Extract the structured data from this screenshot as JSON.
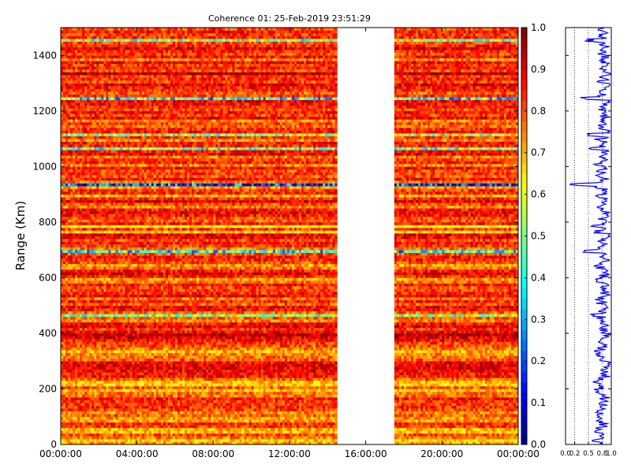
{
  "chart_data": [
    {
      "type": "heatmap",
      "title": "Coherence 01: 25-Feb-2019 23:51:29",
      "xlabel": "",
      "ylabel": "Range (Km)",
      "x_ticks": [
        "00:00:00",
        "04:00:00",
        "08:00:00",
        "12:00:00",
        "16:00:00",
        "20:00:00",
        "00:00:00"
      ],
      "x_range_hours": [
        0,
        24
      ],
      "y_ticks": [
        0,
        200,
        400,
        600,
        800,
        1000,
        1200,
        1400
      ],
      "ylim": [
        0,
        1500
      ],
      "data_gap_hours": [
        14.5,
        17.5
      ],
      "data_segments_hours": [
        [
          0,
          14.5
        ],
        [
          17.5,
          24
        ]
      ],
      "colormap": "jet",
      "colorbar": {
        "ticks": [
          "0.0",
          "0.1",
          "0.2",
          "0.3",
          "0.4",
          "0.5",
          "0.6",
          "0.7",
          "0.8",
          "0.9",
          "1.0"
        ],
        "range": [
          0,
          1
        ]
      },
      "range_bin_km": 10,
      "coherence_profile_by_range": [
        0.72,
        0.66,
        0.74,
        0.8,
        0.68,
        0.7,
        0.82,
        0.84,
        0.72,
        0.72,
        0.78,
        0.74,
        0.8,
        0.84,
        0.82,
        0.82,
        0.86,
        0.76,
        0.76,
        0.68,
        0.78,
        0.66,
        0.68,
        0.78,
        0.86,
        0.86,
        0.88,
        0.9,
        0.9,
        0.88,
        0.78,
        0.76,
        0.74,
        0.7,
        0.76,
        0.8,
        0.82,
        0.86,
        0.9,
        0.94,
        0.88,
        0.82,
        0.9,
        0.86,
        0.74,
        0.78,
        0.54,
        0.78,
        0.86,
        0.88,
        0.78,
        0.84,
        0.76,
        0.88,
        0.84,
        0.82,
        0.8,
        0.86,
        0.76,
        0.72,
        0.84,
        0.9,
        0.86,
        0.76,
        0.72,
        0.8,
        0.84,
        0.86,
        0.8,
        0.4,
        0.76,
        0.82,
        0.86,
        0.8,
        0.88,
        0.9,
        0.66,
        0.82,
        0.62,
        0.86,
        0.78,
        0.8,
        0.86,
        0.88,
        0.86,
        0.74,
        0.8,
        0.9,
        0.84,
        0.7,
        0.84,
        0.82,
        0.74,
        0.2,
        0.76,
        0.86,
        0.78,
        0.82,
        0.8,
        0.86,
        0.74,
        0.84,
        0.82,
        0.76,
        0.88,
        0.86,
        0.5,
        0.84,
        0.86,
        0.74,
        0.82,
        0.56,
        0.86,
        0.84,
        0.76,
        0.8,
        0.74,
        0.88,
        0.82,
        0.86,
        0.8,
        0.84,
        0.86,
        0.88,
        0.4,
        0.82,
        0.78,
        0.84,
        0.86,
        0.9,
        0.8,
        0.84,
        0.82,
        0.96,
        0.8,
        0.86,
        0.82,
        0.88,
        0.74,
        0.86,
        0.8,
        0.84,
        0.9,
        0.84,
        0.8,
        0.52,
        0.84,
        0.82,
        0.86,
        0.8
      ]
    },
    {
      "type": "line",
      "title": "",
      "xlabel": "",
      "ylabel": "",
      "x_ticks": [
        "0.0",
        "0.2",
        "0.5",
        "0.8",
        "1.0"
      ],
      "xlim": [
        0,
        1
      ],
      "ylim": [
        0,
        1500
      ],
      "line_color": "#0000ff"
    }
  ]
}
